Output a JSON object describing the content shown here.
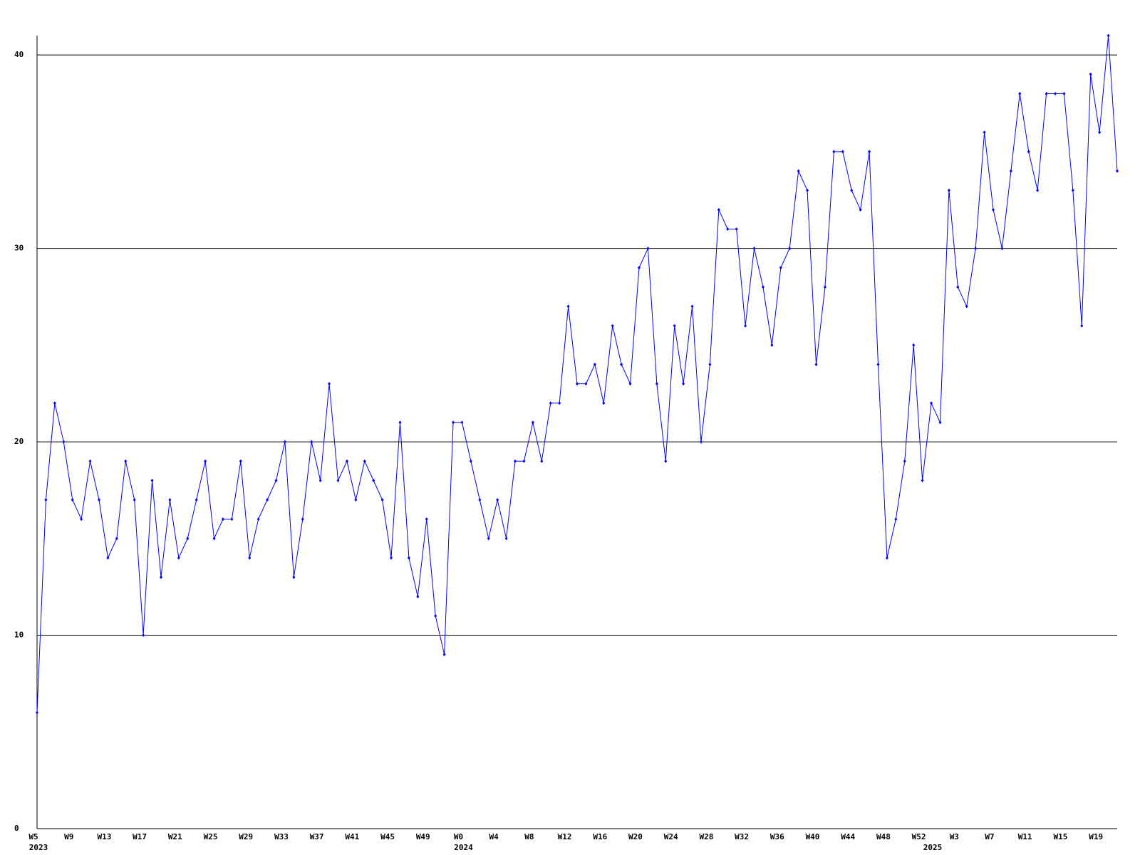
{
  "chart_data": {
    "type": "line",
    "categories": [
      "W5",
      null,
      null,
      null,
      "W9",
      null,
      null,
      null,
      "W13",
      null,
      null,
      null,
      "W17",
      null,
      null,
      null,
      "W21",
      null,
      null,
      null,
      "W25",
      null,
      null,
      null,
      "W29",
      null,
      null,
      null,
      "W33",
      null,
      null,
      null,
      "W37",
      null,
      null,
      null,
      "W41",
      null,
      null,
      null,
      "W45",
      null,
      null,
      null,
      "W49",
      null,
      null,
      null,
      "W0",
      null,
      null,
      null,
      "W4",
      null,
      null,
      null,
      "W8",
      null,
      null,
      null,
      "W12",
      null,
      null,
      null,
      "W16",
      null,
      null,
      null,
      "W20",
      null,
      null,
      null,
      "W24",
      null,
      null,
      null,
      "W28",
      null,
      null,
      null,
      "W32",
      null,
      null,
      null,
      "W36",
      null,
      null,
      null,
      "W40",
      null,
      null,
      null,
      "W44",
      null,
      null,
      null,
      "W48",
      null,
      null,
      null,
      "W52",
      null,
      null,
      null,
      "W3",
      null,
      null,
      null,
      "W7",
      null,
      null,
      null,
      "W11",
      null,
      null,
      null,
      "W15",
      null,
      null,
      null,
      "W19",
      null,
      null
    ],
    "year_labels": [
      "2023",
      null,
      null,
      null,
      null,
      null,
      null,
      null,
      null,
      null,
      null,
      null,
      null,
      null,
      null,
      null,
      null,
      null,
      null,
      null,
      null,
      null,
      null,
      null,
      null,
      null,
      null,
      null,
      null,
      null,
      null,
      null,
      null,
      null,
      null,
      null,
      null,
      null,
      null,
      null,
      null,
      null,
      null,
      null,
      null,
      null,
      null,
      null,
      "2024",
      null,
      null,
      null,
      null,
      null,
      null,
      null,
      null,
      null,
      null,
      null,
      null,
      null,
      null,
      null,
      null,
      null,
      null,
      null,
      null,
      null,
      null,
      null,
      null,
      null,
      null,
      null,
      null,
      null,
      null,
      null,
      null,
      null,
      null,
      null,
      null,
      null,
      null,
      null,
      null,
      null,
      null,
      null,
      null,
      null,
      null,
      null,
      null,
      null,
      null,
      null,
      null,
      "2025",
      null,
      null,
      null,
      null,
      null,
      null,
      null,
      null,
      null,
      null,
      null,
      null,
      null,
      null,
      null,
      null,
      null,
      null,
      null,
      null
    ],
    "values": [
      6,
      17,
      22,
      20,
      17,
      16,
      19,
      17,
      14,
      15,
      19,
      17,
      10,
      18,
      13,
      17,
      14,
      15,
      17,
      19,
      15,
      16,
      16,
      19,
      14,
      16,
      17,
      18,
      20,
      13,
      16,
      20,
      18,
      23,
      18,
      19,
      17,
      19,
      18,
      17,
      14,
      21,
      14,
      12,
      16,
      11,
      9,
      21,
      21,
      19,
      17,
      15,
      17,
      15,
      19,
      19,
      21,
      19,
      22,
      22,
      27,
      23,
      23,
      24,
      22,
      26,
      24,
      23,
      29,
      30,
      23,
      19,
      26,
      23,
      27,
      20,
      24,
      32,
      31,
      31,
      26,
      30,
      28,
      25,
      29,
      30,
      34,
      33,
      24,
      28,
      35,
      35,
      33,
      32,
      35,
      24,
      14,
      16,
      19,
      25,
      18,
      22,
      21,
      33,
      28,
      27,
      30,
      36,
      32,
      30,
      34,
      38,
      35,
      33,
      38,
      38,
      38,
      33,
      26,
      39,
      36,
      41,
      34
    ],
    "color": "#0000ff",
    "ylim": [
      0,
      41
    ],
    "yticks": [
      0,
      10,
      20,
      30,
      40
    ],
    "grid": true
  }
}
